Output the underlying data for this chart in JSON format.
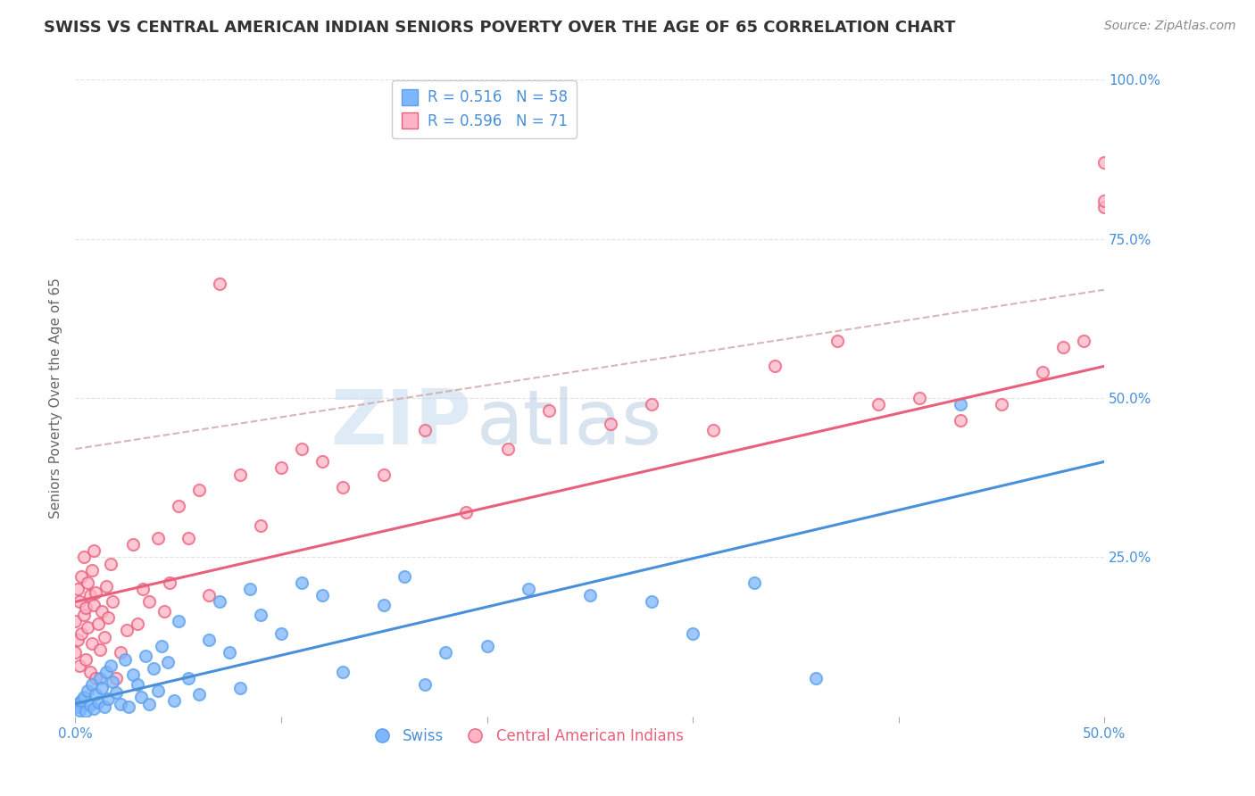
{
  "title": "SWISS VS CENTRAL AMERICAN INDIAN SENIORS POVERTY OVER THE AGE OF 65 CORRELATION CHART",
  "source": "Source: ZipAtlas.com",
  "ylabel": "Seniors Poverty Over the Age of 65",
  "xlim": [
    0.0,
    0.5
  ],
  "ylim": [
    0.0,
    1.0
  ],
  "xticks": [
    0.0,
    0.1,
    0.2,
    0.3,
    0.4,
    0.5
  ],
  "xticklabels": [
    "0.0%",
    "",
    "",
    "",
    "",
    "50.0%"
  ],
  "yticks": [
    0.0,
    0.25,
    0.5,
    0.75,
    1.0
  ],
  "yticklabels": [
    "",
    "25.0%",
    "50.0%",
    "75.0%",
    "100.0%"
  ],
  "swiss_color": "#7EB6FF",
  "swiss_edge_color": "#5A9FE8",
  "cai_color": "#FFB3C6",
  "cai_edge_color": "#E8607A",
  "swiss_r": 0.516,
  "swiss_n": 58,
  "cai_r": 0.596,
  "cai_n": 71,
  "swiss_line_color": "#4A90D9",
  "cai_line_color": "#E8607A",
  "dash_line_color": "#D0AAAA",
  "swiss_trend_m": 0.76,
  "swiss_trend_b": 0.02,
  "cai_trend_m": 0.74,
  "cai_trend_b": 0.18,
  "dash_trend_m": 0.5,
  "dash_trend_b": 0.42,
  "swiss_scatter_x": [
    0.0,
    0.001,
    0.002,
    0.003,
    0.004,
    0.005,
    0.006,
    0.007,
    0.008,
    0.009,
    0.01,
    0.011,
    0.012,
    0.013,
    0.014,
    0.015,
    0.016,
    0.017,
    0.018,
    0.02,
    0.022,
    0.024,
    0.026,
    0.028,
    0.03,
    0.032,
    0.034,
    0.036,
    0.038,
    0.04,
    0.042,
    0.045,
    0.048,
    0.05,
    0.055,
    0.06,
    0.065,
    0.07,
    0.075,
    0.08,
    0.085,
    0.09,
    0.1,
    0.11,
    0.12,
    0.13,
    0.15,
    0.16,
    0.17,
    0.18,
    0.2,
    0.22,
    0.25,
    0.28,
    0.3,
    0.33,
    0.36,
    0.43
  ],
  "swiss_scatter_y": [
    0.02,
    0.015,
    0.01,
    0.025,
    0.03,
    0.008,
    0.04,
    0.018,
    0.05,
    0.012,
    0.035,
    0.022,
    0.06,
    0.045,
    0.015,
    0.07,
    0.028,
    0.08,
    0.055,
    0.038,
    0.02,
    0.09,
    0.015,
    0.065,
    0.05,
    0.03,
    0.095,
    0.02,
    0.075,
    0.04,
    0.11,
    0.085,
    0.025,
    0.15,
    0.06,
    0.035,
    0.12,
    0.18,
    0.1,
    0.045,
    0.2,
    0.16,
    0.13,
    0.21,
    0.19,
    0.07,
    0.175,
    0.22,
    0.05,
    0.1,
    0.11,
    0.2,
    0.19,
    0.18,
    0.13,
    0.21,
    0.06,
    0.49
  ],
  "cai_scatter_x": [
    0.0,
    0.0,
    0.001,
    0.001,
    0.002,
    0.002,
    0.003,
    0.003,
    0.004,
    0.004,
    0.005,
    0.005,
    0.006,
    0.006,
    0.007,
    0.007,
    0.008,
    0.008,
    0.009,
    0.009,
    0.01,
    0.01,
    0.011,
    0.012,
    0.013,
    0.014,
    0.015,
    0.016,
    0.017,
    0.018,
    0.02,
    0.022,
    0.025,
    0.028,
    0.03,
    0.033,
    0.036,
    0.04,
    0.043,
    0.046,
    0.05,
    0.055,
    0.06,
    0.065,
    0.07,
    0.08,
    0.09,
    0.1,
    0.11,
    0.12,
    0.13,
    0.15,
    0.17,
    0.19,
    0.21,
    0.23,
    0.26,
    0.28,
    0.31,
    0.34,
    0.37,
    0.39,
    0.41,
    0.43,
    0.45,
    0.47,
    0.48,
    0.49,
    0.5,
    0.5,
    0.5
  ],
  "cai_scatter_y": [
    0.1,
    0.15,
    0.12,
    0.2,
    0.08,
    0.18,
    0.13,
    0.22,
    0.16,
    0.25,
    0.09,
    0.17,
    0.14,
    0.21,
    0.07,
    0.19,
    0.115,
    0.23,
    0.175,
    0.26,
    0.06,
    0.195,
    0.145,
    0.105,
    0.165,
    0.125,
    0.205,
    0.155,
    0.24,
    0.18,
    0.06,
    0.1,
    0.135,
    0.27,
    0.145,
    0.2,
    0.18,
    0.28,
    0.165,
    0.21,
    0.33,
    0.28,
    0.355,
    0.19,
    0.68,
    0.38,
    0.3,
    0.39,
    0.42,
    0.4,
    0.36,
    0.38,
    0.45,
    0.32,
    0.42,
    0.48,
    0.46,
    0.49,
    0.45,
    0.55,
    0.59,
    0.49,
    0.5,
    0.465,
    0.49,
    0.54,
    0.58,
    0.59,
    0.87,
    0.8,
    0.81
  ],
  "watermark_zip": "ZIP",
  "watermark_atlas": "atlas",
  "background_color": "#ffffff",
  "grid_color": "#dddddd",
  "tick_color": "#4A90D9",
  "title_color": "#333333",
  "ylabel_color": "#666666",
  "legend_swiss_label": "Swiss",
  "legend_cai_label": "Central American Indians"
}
